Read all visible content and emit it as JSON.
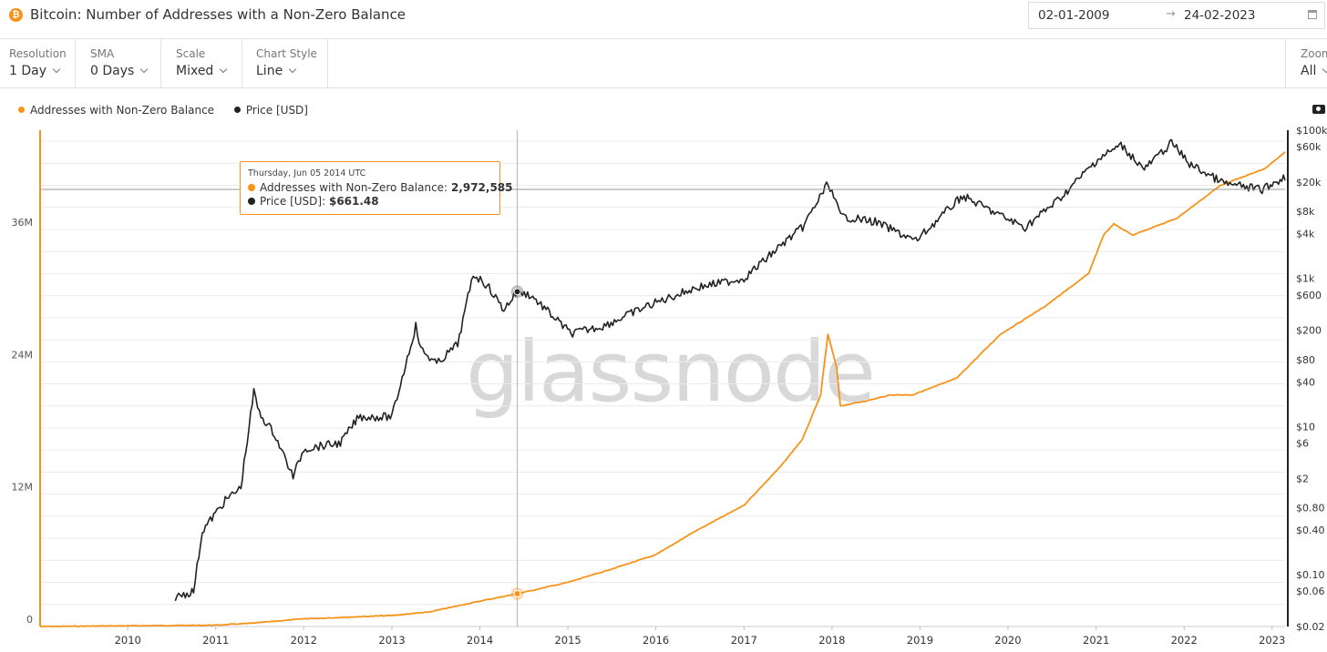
{
  "header": {
    "title": "Bitcoin: Number of Addresses with a Non-Zero Balance",
    "icon_glyph": "₿",
    "date_start": "02-01-2009",
    "date_arrow": "→",
    "date_end": "24-02-2023"
  },
  "controls": [
    {
      "label": "Resolution",
      "value": "1 Day"
    },
    {
      "label": "SMA",
      "value": "0 Days"
    },
    {
      "label": "Scale",
      "value": "Mixed"
    },
    {
      "label": "Chart Style",
      "value": "Line"
    }
  ],
  "zoom": {
    "label": "Zoom",
    "value": "All"
  },
  "legend": [
    {
      "label": "Addresses with Non-Zero Balance",
      "color": "#f7931a"
    },
    {
      "label": "Price [USD]",
      "color": "#222222"
    }
  ],
  "tooltip": {
    "date": "Thursday, Jun 05 2014 UTC",
    "addresses_label": "Addresses with Non-Zero Balance:",
    "addresses_value": "2,972,585",
    "price_label": "Price [USD]:",
    "price_value": "$661.48"
  },
  "watermark": "glassnode",
  "colors": {
    "addresses": "#f7931a",
    "price": "#222222",
    "grid": "#ececec"
  },
  "chart_data": {
    "type": "line",
    "x_range": [
      "2009-01-02",
      "2023-02-24"
    ],
    "x_ticks": [
      "2010",
      "2011",
      "2012",
      "2013",
      "2014",
      "2015",
      "2016",
      "2017",
      "2018",
      "2019",
      "2020",
      "2021",
      "2022",
      "2023"
    ],
    "left_axis": {
      "scale": "linear",
      "range": [
        0,
        45000000
      ],
      "ticks": [
        0,
        12000000,
        24000000,
        36000000
      ],
      "tick_labels": [
        "0",
        "12M",
        "24M",
        "36M"
      ]
    },
    "right_axis": {
      "scale": "log",
      "range": [
        0.02,
        100000
      ],
      "ticks": [
        100000,
        60000,
        20000,
        8000,
        4000,
        1000,
        600,
        200,
        80,
        40,
        10,
        6,
        2,
        0.8,
        0.4,
        0.1,
        0.06,
        0.02
      ],
      "tick_labels": [
        "$100k",
        "$60k",
        "$20k",
        "$8k",
        "$4k",
        "$1k",
        "$600",
        "$200",
        "$80",
        "$40",
        "$10",
        "$6",
        "$2",
        "$0.80",
        "$0.40",
        "$0.10",
        "$0.06",
        "$0.02"
      ]
    },
    "grid": true,
    "legend_position": "top-left",
    "series": [
      {
        "name": "Addresses with Non-Zero Balance",
        "axis": "left",
        "color": "#f7931a",
        "points": [
          [
            "2009-01-02",
            0
          ],
          [
            "2010-01-01",
            60000
          ],
          [
            "2011-01-01",
            120000
          ],
          [
            "2011-06-01",
            300000
          ],
          [
            "2012-01-01",
            700000
          ],
          [
            "2013-01-01",
            1000000
          ],
          [
            "2013-06-01",
            1300000
          ],
          [
            "2014-01-01",
            2300000
          ],
          [
            "2014-06-05",
            2972585
          ],
          [
            "2015-01-01",
            4000000
          ],
          [
            "2015-06-01",
            5000000
          ],
          [
            "2016-01-01",
            6500000
          ],
          [
            "2016-06-01",
            8500000
          ],
          [
            "2017-01-01",
            11000000
          ],
          [
            "2017-06-01",
            14500000
          ],
          [
            "2017-09-01",
            17000000
          ],
          [
            "2017-11-15",
            21000000
          ],
          [
            "2017-12-15",
            26500000
          ],
          [
            "2018-01-20",
            23500000
          ],
          [
            "2018-02-05",
            20000000
          ],
          [
            "2018-06-01",
            20500000
          ],
          [
            "2018-09-01",
            21000000
          ],
          [
            "2018-12-01",
            21000000
          ],
          [
            "2019-06-01",
            22500000
          ],
          [
            "2019-12-01",
            26500000
          ],
          [
            "2020-06-01",
            29000000
          ],
          [
            "2020-12-01",
            32000000
          ],
          [
            "2021-02-01",
            35500000
          ],
          [
            "2021-03-15",
            36500000
          ],
          [
            "2021-06-01",
            35500000
          ],
          [
            "2021-12-01",
            37000000
          ],
          [
            "2022-06-01",
            40000000
          ],
          [
            "2022-12-01",
            41500000
          ],
          [
            "2023-02-24",
            43000000
          ]
        ]
      },
      {
        "name": "Price [USD]",
        "axis": "right",
        "color": "#222222",
        "points": [
          [
            "2010-07-17",
            0.05
          ],
          [
            "2010-10-01",
            0.06
          ],
          [
            "2010-11-06",
            0.39
          ],
          [
            "2011-02-09",
            1.0
          ],
          [
            "2011-04-15",
            1.5
          ],
          [
            "2011-06-08",
            29.6
          ],
          [
            "2011-07-01",
            15
          ],
          [
            "2011-09-01",
            8
          ],
          [
            "2011-11-18",
            2.1
          ],
          [
            "2012-01-01",
            5
          ],
          [
            "2012-06-01",
            6
          ],
          [
            "2012-08-16",
            13.5
          ],
          [
            "2013-01-01",
            13.5
          ],
          [
            "2013-04-10",
            230
          ],
          [
            "2013-05-01",
            110
          ],
          [
            "2013-07-06",
            70
          ],
          [
            "2013-10-01",
            130
          ],
          [
            "2013-12-04",
            1150
          ],
          [
            "2014-02-01",
            800
          ],
          [
            "2014-04-10",
            380
          ],
          [
            "2014-06-05",
            661.48
          ],
          [
            "2014-08-01",
            590
          ],
          [
            "2015-01-14",
            180
          ],
          [
            "2015-06-01",
            230
          ],
          [
            "2015-12-01",
            430
          ],
          [
            "2016-06-16",
            750
          ],
          [
            "2017-01-01",
            1000
          ],
          [
            "2017-06-12",
            2950
          ],
          [
            "2017-09-01",
            4900
          ],
          [
            "2017-12-17",
            19500
          ],
          [
            "2018-02-06",
            6900
          ],
          [
            "2018-06-29",
            5800
          ],
          [
            "2018-12-15",
            3200
          ],
          [
            "2019-06-26",
            13000
          ],
          [
            "2019-12-18",
            6600
          ],
          [
            "2020-03-12",
            4900
          ],
          [
            "2020-08-01",
            11800
          ],
          [
            "2021-01-08",
            40600
          ],
          [
            "2021-04-14",
            63000
          ],
          [
            "2021-07-20",
            29800
          ],
          [
            "2021-11-10",
            68000
          ],
          [
            "2022-01-24",
            35000
          ],
          [
            "2022-06-18",
            19000
          ],
          [
            "2022-11-21",
            15800
          ],
          [
            "2023-02-24",
            23500
          ]
        ]
      }
    ],
    "highlight": {
      "date": "2014-06-05",
      "addresses": 2972585,
      "price": 661.48
    }
  }
}
